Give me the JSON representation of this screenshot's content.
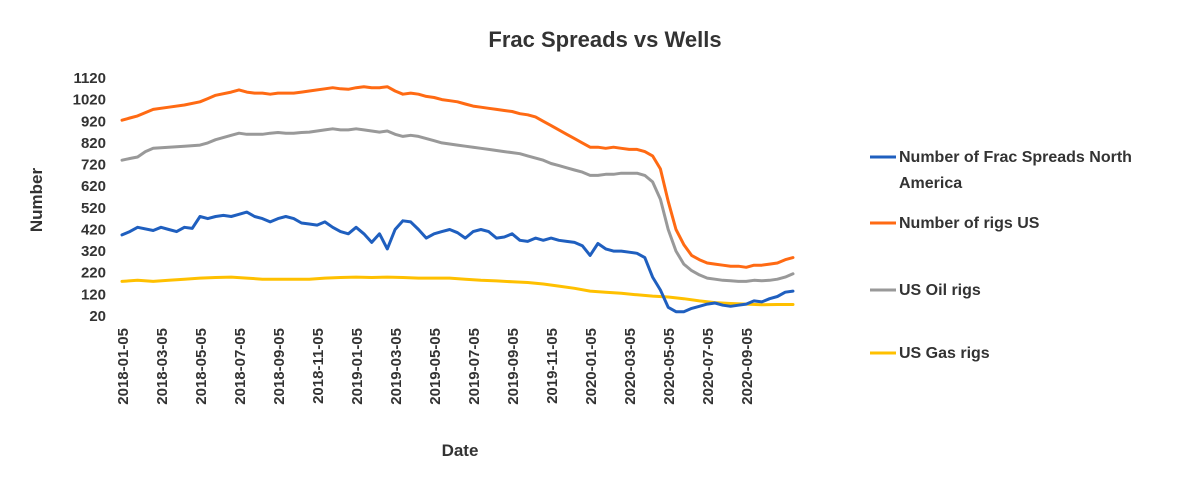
{
  "chart_data": {
    "type": "line",
    "title": "Frac Spreads vs Wells",
    "xlabel": "Date",
    "ylabel": "Number",
    "ylim": [
      20,
      1120
    ],
    "yticks": [
      "20",
      "120",
      "220",
      "320",
      "420",
      "520",
      "620",
      "720",
      "820",
      "920",
      "1020",
      "1120"
    ],
    "x_tick_labels": [
      "2018-01-05",
      "2018-03-05",
      "2018-05-05",
      "2018-07-05",
      "2018-09-05",
      "2018-11-05",
      "2019-01-05",
      "2019-03-05",
      "2019-05-05",
      "2019-07-05",
      "2019-09-05",
      "2019-11-05",
      "2020-01-05",
      "2020-03-05",
      "2020-05-05",
      "2020-07-05",
      "2020-09-05"
    ],
    "x_range_months": [
      0,
      35
    ],
    "legend_position": "right",
    "series": [
      {
        "name": "Number of Frac Spreads North America",
        "color": "#1F5FBF",
        "points": [
          [
            0,
            395
          ],
          [
            0.5,
            410
          ],
          [
            1,
            430
          ],
          [
            2,
            415
          ],
          [
            2.5,
            430
          ],
          [
            3,
            420
          ],
          [
            3.5,
            410
          ],
          [
            4,
            430
          ],
          [
            4.5,
            425
          ],
          [
            5,
            480
          ],
          [
            5.5,
            470
          ],
          [
            6,
            480
          ],
          [
            6.5,
            485
          ],
          [
            7,
            480
          ],
          [
            7.5,
            490
          ],
          [
            8,
            500
          ],
          [
            8.5,
            480
          ],
          [
            9,
            470
          ],
          [
            9.5,
            455
          ],
          [
            10,
            470
          ],
          [
            10.5,
            480
          ],
          [
            11,
            470
          ],
          [
            11.5,
            450
          ],
          [
            12,
            445
          ],
          [
            12.5,
            440
          ],
          [
            13,
            455
          ],
          [
            13.5,
            430
          ],
          [
            14,
            410
          ],
          [
            14.5,
            400
          ],
          [
            15,
            430
          ],
          [
            15.5,
            400
          ],
          [
            16,
            360
          ],
          [
            16.5,
            400
          ],
          [
            17,
            330
          ],
          [
            17.5,
            420
          ],
          [
            18,
            460
          ],
          [
            18.5,
            455
          ],
          [
            19,
            420
          ],
          [
            19.5,
            380
          ],
          [
            20,
            400
          ],
          [
            20.5,
            410
          ],
          [
            21,
            420
          ],
          [
            21.5,
            405
          ],
          [
            22,
            380
          ],
          [
            22.5,
            410
          ],
          [
            23,
            420
          ],
          [
            23.5,
            410
          ],
          [
            24,
            380
          ],
          [
            24.5,
            385
          ],
          [
            25,
            400
          ],
          [
            25.5,
            370
          ],
          [
            26,
            365
          ],
          [
            26.5,
            380
          ],
          [
            27,
            370
          ],
          [
            27.5,
            380
          ],
          [
            28,
            370
          ],
          [
            28.5,
            365
          ],
          [
            29,
            360
          ],
          [
            29.5,
            345
          ],
          [
            30,
            300
          ],
          [
            30.5,
            355
          ],
          [
            31,
            330
          ],
          [
            31.5,
            320
          ],
          [
            32,
            320
          ],
          [
            32.5,
            315
          ],
          [
            33,
            310
          ],
          [
            33.5,
            290
          ],
          [
            34,
            200
          ],
          [
            34.5,
            140
          ],
          [
            35,
            60
          ],
          [
            35.5,
            40
          ],
          [
            36,
            40
          ],
          [
            36.5,
            55
          ],
          [
            37,
            65
          ],
          [
            37.5,
            75
          ],
          [
            38,
            80
          ],
          [
            38.5,
            70
          ],
          [
            39,
            65
          ],
          [
            39.5,
            70
          ],
          [
            40,
            75
          ],
          [
            40.5,
            90
          ],
          [
            41,
            85
          ],
          [
            41.5,
            100
          ],
          [
            42,
            110
          ],
          [
            42.5,
            130
          ],
          [
            43,
            135
          ]
        ]
      },
      {
        "name": "Number of rigs US",
        "color": "#FF6A13",
        "points": [
          [
            0,
            925
          ],
          [
            0.5,
            935
          ],
          [
            1,
            945
          ],
          [
            1.5,
            960
          ],
          [
            2,
            975
          ],
          [
            3,
            985
          ],
          [
            4,
            995
          ],
          [
            5,
            1010
          ],
          [
            5.5,
            1025
          ],
          [
            6,
            1040
          ],
          [
            7,
            1055
          ],
          [
            7.5,
            1065
          ],
          [
            8,
            1055
          ],
          [
            8.5,
            1050
          ],
          [
            9,
            1050
          ],
          [
            9.5,
            1045
          ],
          [
            10,
            1050
          ],
          [
            10.5,
            1050
          ],
          [
            11,
            1050
          ],
          [
            11.5,
            1055
          ],
          [
            12,
            1060
          ],
          [
            13,
            1070
          ],
          [
            13.5,
            1075
          ],
          [
            14,
            1070
          ],
          [
            14.5,
            1068
          ],
          [
            15,
            1075
          ],
          [
            15.5,
            1080
          ],
          [
            16,
            1075
          ],
          [
            16.5,
            1075
          ],
          [
            17,
            1080
          ],
          [
            17.5,
            1060
          ],
          [
            18,
            1045
          ],
          [
            18.5,
            1050
          ],
          [
            19,
            1045
          ],
          [
            19.5,
            1035
          ],
          [
            20,
            1030
          ],
          [
            20.5,
            1020
          ],
          [
            21,
            1015
          ],
          [
            21.5,
            1010
          ],
          [
            22,
            1000
          ],
          [
            22.5,
            990
          ],
          [
            23,
            985
          ],
          [
            23.5,
            980
          ],
          [
            24,
            975
          ],
          [
            24.5,
            970
          ],
          [
            25,
            965
          ],
          [
            25.5,
            955
          ],
          [
            26,
            950
          ],
          [
            26.5,
            940
          ],
          [
            27,
            920
          ],
          [
            27.5,
            900
          ],
          [
            28,
            880
          ],
          [
            28.5,
            860
          ],
          [
            29,
            840
          ],
          [
            29.5,
            820
          ],
          [
            30,
            800
          ],
          [
            30.5,
            800
          ],
          [
            31,
            795
          ],
          [
            31.5,
            800
          ],
          [
            32,
            795
          ],
          [
            32.5,
            790
          ],
          [
            33,
            790
          ],
          [
            33.5,
            780
          ],
          [
            34,
            760
          ],
          [
            34.5,
            700
          ],
          [
            35,
            550
          ],
          [
            35.5,
            420
          ],
          [
            36,
            350
          ],
          [
            36.5,
            300
          ],
          [
            37,
            280
          ],
          [
            37.5,
            265
          ],
          [
            38,
            260
          ],
          [
            38.5,
            255
          ],
          [
            39,
            250
          ],
          [
            39.5,
            250
          ],
          [
            40,
            245
          ],
          [
            40.5,
            255
          ],
          [
            41,
            255
          ],
          [
            41.5,
            260
          ],
          [
            42,
            265
          ],
          [
            42.5,
            280
          ],
          [
            43,
            290
          ]
        ]
      },
      {
        "name": "US Oil rigs",
        "color": "#999999",
        "points": [
          [
            0,
            740
          ],
          [
            0.5,
            748
          ],
          [
            1,
            755
          ],
          [
            1.5,
            780
          ],
          [
            2,
            795
          ],
          [
            3,
            800
          ],
          [
            4,
            805
          ],
          [
            5,
            810
          ],
          [
            5.5,
            820
          ],
          [
            6,
            835
          ],
          [
            7,
            855
          ],
          [
            7.5,
            865
          ],
          [
            8,
            860
          ],
          [
            8.5,
            860
          ],
          [
            9,
            860
          ],
          [
            9.5,
            865
          ],
          [
            10,
            868
          ],
          [
            10.5,
            865
          ],
          [
            11,
            865
          ],
          [
            11.5,
            868
          ],
          [
            12,
            870
          ],
          [
            13,
            880
          ],
          [
            13.5,
            885
          ],
          [
            14,
            880
          ],
          [
            14.5,
            880
          ],
          [
            15,
            885
          ],
          [
            15.5,
            880
          ],
          [
            16,
            875
          ],
          [
            16.5,
            870
          ],
          [
            17,
            875
          ],
          [
            17.5,
            860
          ],
          [
            18,
            850
          ],
          [
            18.5,
            855
          ],
          [
            19,
            850
          ],
          [
            19.5,
            840
          ],
          [
            20,
            830
          ],
          [
            20.5,
            820
          ],
          [
            21,
            815
          ],
          [
            21.5,
            810
          ],
          [
            22,
            805
          ],
          [
            22.5,
            800
          ],
          [
            23,
            795
          ],
          [
            23.5,
            790
          ],
          [
            24,
            785
          ],
          [
            24.5,
            780
          ],
          [
            25,
            775
          ],
          [
            25.5,
            770
          ],
          [
            26,
            760
          ],
          [
            26.5,
            750
          ],
          [
            27,
            740
          ],
          [
            27.5,
            725
          ],
          [
            28,
            715
          ],
          [
            28.5,
            705
          ],
          [
            29,
            695
          ],
          [
            29.5,
            685
          ],
          [
            30,
            670
          ],
          [
            30.5,
            670
          ],
          [
            31,
            675
          ],
          [
            31.5,
            675
          ],
          [
            32,
            680
          ],
          [
            32.5,
            680
          ],
          [
            33,
            680
          ],
          [
            33.5,
            670
          ],
          [
            34,
            640
          ],
          [
            34.5,
            560
          ],
          [
            35,
            420
          ],
          [
            35.5,
            320
          ],
          [
            36,
            260
          ],
          [
            36.5,
            230
          ],
          [
            37,
            210
          ],
          [
            37.5,
            195
          ],
          [
            38,
            190
          ],
          [
            38.5,
            185
          ],
          [
            39,
            183
          ],
          [
            39.5,
            180
          ],
          [
            40,
            180
          ],
          [
            40.5,
            185
          ],
          [
            41,
            183
          ],
          [
            41.5,
            185
          ],
          [
            42,
            190
          ],
          [
            42.5,
            200
          ],
          [
            43,
            215
          ]
        ]
      },
      {
        "name": "US Gas rigs",
        "color": "#FFC000",
        "points": [
          [
            0,
            180
          ],
          [
            1,
            185
          ],
          [
            2,
            180
          ],
          [
            3,
            185
          ],
          [
            4,
            190
          ],
          [
            5,
            195
          ],
          [
            6,
            198
          ],
          [
            7,
            200
          ],
          [
            8,
            195
          ],
          [
            9,
            190
          ],
          [
            10,
            190
          ],
          [
            11,
            190
          ],
          [
            12,
            190
          ],
          [
            13,
            195
          ],
          [
            14,
            198
          ],
          [
            15,
            200
          ],
          [
            16,
            198
          ],
          [
            17,
            200
          ],
          [
            18,
            198
          ],
          [
            19,
            195
          ],
          [
            20,
            195
          ],
          [
            21,
            195
          ],
          [
            22,
            190
          ],
          [
            23,
            185
          ],
          [
            24,
            182
          ],
          [
            25,
            178
          ],
          [
            26,
            175
          ],
          [
            27,
            168
          ],
          [
            28,
            158
          ],
          [
            29,
            148
          ],
          [
            30,
            135
          ],
          [
            31,
            130
          ],
          [
            32,
            125
          ],
          [
            33,
            118
          ],
          [
            34,
            112
          ],
          [
            35,
            108
          ],
          [
            36,
            100
          ],
          [
            37,
            90
          ],
          [
            38,
            82
          ],
          [
            39,
            78
          ],
          [
            40,
            75
          ],
          [
            41,
            72
          ],
          [
            42,
            73
          ],
          [
            43,
            73
          ]
        ]
      }
    ]
  }
}
